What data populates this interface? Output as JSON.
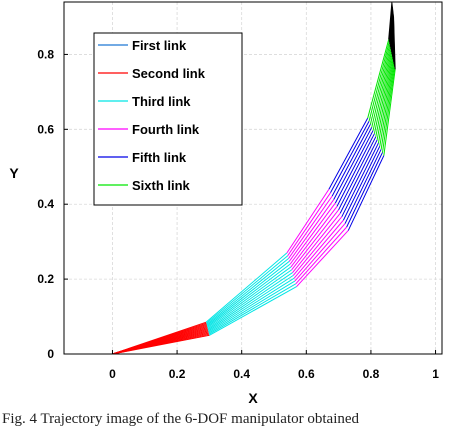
{
  "chart_data": {
    "type": "line",
    "title": "",
    "xlabel": "X",
    "ylabel": "Y",
    "xlim": [
      -0.15,
      1.02
    ],
    "ylim": [
      0,
      0.94
    ],
    "x_ticks": [
      "0",
      "0.2",
      "0.4",
      "0.6",
      "0.8",
      "1"
    ],
    "y_ticks": [
      "0",
      "0.2",
      "0.4",
      "0.6",
      "0.8"
    ],
    "grid": true,
    "legend_position": "top-left",
    "series": [
      {
        "name": "First link",
        "color": "#1f77d4",
        "start": [
          0.0,
          0.0
        ],
        "end_min": [
          0.0,
          0.0
        ],
        "end_max": [
          0.0,
          0.0
        ]
      },
      {
        "name": "Second link",
        "color": "#ff0000",
        "start": [
          0.0,
          0.0
        ],
        "end_min": [
          0.29,
          0.085
        ],
        "end_max": [
          0.3,
          0.05
        ]
      },
      {
        "name": "Third link",
        "color": "#00e5e5",
        "start_min": [
          0.29,
          0.085
        ],
        "start_max": [
          0.3,
          0.05
        ],
        "end_min": [
          0.54,
          0.27
        ],
        "end_max": [
          0.57,
          0.18
        ]
      },
      {
        "name": "Fourth link",
        "color": "#ff00ff",
        "start_min": [
          0.54,
          0.27
        ],
        "start_max": [
          0.57,
          0.18
        ],
        "end_min": [
          0.67,
          0.44
        ],
        "end_max": [
          0.73,
          0.33
        ]
      },
      {
        "name": "Fifth link",
        "color": "#0000e6",
        "start_min": [
          0.67,
          0.44
        ],
        "start_max": [
          0.73,
          0.33
        ],
        "end_min": [
          0.79,
          0.63
        ],
        "end_max": [
          0.84,
          0.53
        ]
      },
      {
        "name": "Sixth link",
        "color": "#00e600",
        "start_min": [
          0.79,
          0.63
        ],
        "start_max": [
          0.84,
          0.53
        ],
        "end_min": [
          0.855,
          0.84
        ],
        "end_max": [
          0.875,
          0.76
        ]
      },
      {
        "name": "",
        "color": "#000000",
        "start_min": [
          0.855,
          0.84
        ],
        "start_max": [
          0.875,
          0.76
        ],
        "end_min": [
          0.865,
          0.94
        ],
        "end_max": [
          0.87,
          0.9
        ]
      }
    ]
  },
  "caption": "Fig. 4 Trajectory image of the 6-DOF manipulator obtained"
}
